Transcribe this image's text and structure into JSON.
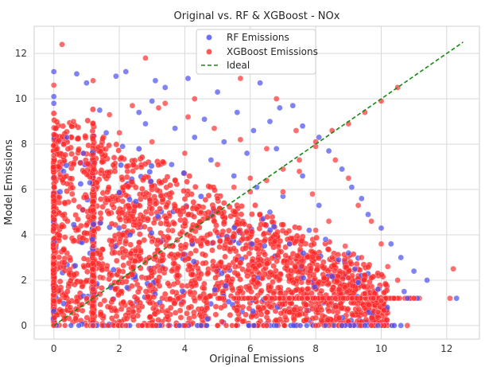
{
  "chart_data": {
    "type": "scatter",
    "title": "Original vs. RF & XGBoost - NOx",
    "xlabel": "Original Emissions",
    "ylabel": "Model Emissions",
    "xlim": [
      -0.6,
      13.0
    ],
    "ylim": [
      -0.6,
      13.2
    ],
    "xticks": [
      0,
      2,
      4,
      6,
      8,
      10,
      12
    ],
    "yticks": [
      0,
      2,
      4,
      6,
      8,
      10,
      12
    ],
    "grid": true,
    "legend_position": "top-center",
    "series": [
      {
        "name": "RF Emissions",
        "color": "#4a4ef0",
        "points": [
          [
            0.0,
            11.2
          ],
          [
            0.0,
            10.1
          ],
          [
            0.0,
            9.8
          ],
          [
            0.7,
            11.1
          ],
          [
            1.0,
            10.7
          ],
          [
            1.9,
            11.0
          ],
          [
            2.2,
            11.2
          ],
          [
            3.1,
            10.8
          ],
          [
            3.4,
            10.5
          ],
          [
            4.1,
            10.9
          ],
          [
            5.0,
            10.3
          ],
          [
            6.3,
            10.7
          ],
          [
            6.9,
            9.6
          ],
          [
            7.3,
            9.7
          ],
          [
            1.4,
            9.5
          ],
          [
            2.6,
            9.4
          ],
          [
            4.6,
            9.1
          ],
          [
            5.6,
            9.4
          ],
          [
            6.1,
            8.6
          ],
          [
            6.6,
            9.0
          ],
          [
            7.6,
            8.8
          ],
          [
            8.1,
            8.3
          ],
          [
            8.4,
            7.7
          ],
          [
            8.8,
            6.9
          ],
          [
            9.1,
            6.1
          ],
          [
            9.4,
            5.6
          ],
          [
            9.6,
            4.9
          ],
          [
            10.0,
            4.3
          ],
          [
            10.3,
            3.6
          ],
          [
            10.6,
            3.0
          ],
          [
            11.0,
            2.4
          ],
          [
            11.4,
            2.0
          ],
          [
            10.7,
            1.5
          ],
          [
            10.8,
            1.2
          ],
          [
            11.1,
            1.2
          ],
          [
            12.3,
            1.2
          ],
          [
            9.9,
            1.6
          ],
          [
            9.3,
            1.9
          ],
          [
            8.7,
            2.9
          ],
          [
            9.0,
            3.2
          ],
          [
            8.1,
            5.3
          ],
          [
            7.6,
            6.6
          ],
          [
            7.8,
            4.2
          ],
          [
            6.8,
            7.8
          ],
          [
            5.9,
            7.6
          ],
          [
            5.2,
            8.1
          ],
          [
            4.3,
            8.3
          ],
          [
            3.7,
            8.7
          ],
          [
            2.8,
            8.9
          ],
          [
            1.6,
            8.5
          ],
          [
            0.4,
            8.3
          ],
          [
            0.9,
            7.6
          ],
          [
            7.2,
            3.6
          ],
          [
            6.6,
            5.0
          ],
          [
            9.5,
            0.0
          ],
          [
            9.9,
            0.0
          ],
          [
            10.4,
            0.0
          ],
          [
            10.6,
            0.0
          ],
          [
            8.8,
            0.0
          ],
          [
            0.3,
            6.8
          ],
          [
            2.1,
            7.9
          ],
          [
            3.0,
            9.9
          ],
          [
            4.8,
            7.3
          ],
          [
            5.5,
            6.6
          ],
          [
            6.2,
            6.1
          ],
          [
            7.0,
            5.7
          ],
          [
            8.3,
            3.8
          ],
          [
            9.2,
            2.5
          ],
          [
            3.6,
            7.1
          ],
          [
            1.1,
            6.3
          ]
        ]
      },
      {
        "name": "XGBoost Emissions",
        "color": "#ff3030",
        "points": [
          [
            0.25,
            12.4
          ],
          [
            2.8,
            11.8
          ],
          [
            5.7,
            10.9
          ],
          [
            4.3,
            10.0
          ],
          [
            3.4,
            9.8
          ],
          [
            1.2,
            10.8
          ],
          [
            0.0,
            10.6
          ],
          [
            6.8,
            10.0
          ],
          [
            7.4,
            8.6
          ],
          [
            8.0,
            7.9
          ],
          [
            8.6,
            7.3
          ],
          [
            9.0,
            6.5
          ],
          [
            9.3,
            5.3
          ],
          [
            9.7,
            4.6
          ],
          [
            10.0,
            3.6
          ],
          [
            10.2,
            2.6
          ],
          [
            10.5,
            2.0
          ],
          [
            10.0,
            1.1
          ],
          [
            10.8,
            0.0
          ],
          [
            12.2,
            2.5
          ],
          [
            12.1,
            1.2
          ],
          [
            11.0,
            1.2
          ],
          [
            9.4,
            3.0
          ],
          [
            8.9,
            3.5
          ],
          [
            8.4,
            4.6
          ],
          [
            7.9,
            5.8
          ],
          [
            7.5,
            6.8
          ],
          [
            6.5,
            7.8
          ],
          [
            5.7,
            8.2
          ],
          [
            4.9,
            8.7
          ],
          [
            4.1,
            9.2
          ],
          [
            3.2,
            9.6
          ],
          [
            2.4,
            9.7
          ],
          [
            1.7,
            9.3
          ],
          [
            0.6,
            9.0
          ],
          [
            0.3,
            8.0
          ],
          [
            2.0,
            8.5
          ],
          [
            3.0,
            8.1
          ],
          [
            4.0,
            7.6
          ],
          [
            5.0,
            7.1
          ],
          [
            6.0,
            6.5
          ],
          [
            7.0,
            5.9
          ],
          [
            8.0,
            4.2
          ],
          [
            8.5,
            3.0
          ],
          [
            9.0,
            2.1
          ],
          [
            9.5,
            1.4
          ],
          [
            9.9,
            0.6
          ],
          [
            0.0,
            0.0
          ],
          [
            0.5,
            0.8
          ],
          [
            1.0,
            1.2
          ],
          [
            1.5,
            2.1
          ],
          [
            2.0,
            2.4
          ],
          [
            2.5,
            3.3
          ],
          [
            3.0,
            3.7
          ],
          [
            3.5,
            4.2
          ],
          [
            4.0,
            4.5
          ],
          [
            4.5,
            5.0
          ],
          [
            5.0,
            5.6
          ],
          [
            5.5,
            6.1
          ],
          [
            6.0,
            5.9
          ],
          [
            6.5,
            6.4
          ],
          [
            7.0,
            6.9
          ],
          [
            7.5,
            7.3
          ],
          [
            8.0,
            8.1
          ],
          [
            8.5,
            8.6
          ],
          [
            9.0,
            8.9
          ],
          [
            9.5,
            9.4
          ],
          [
            10.0,
            9.9
          ],
          [
            10.5,
            10.5
          ],
          [
            1.2,
            0.0
          ],
          [
            2.2,
            0.0
          ],
          [
            3.5,
            0.0
          ],
          [
            5.0,
            0.0
          ],
          [
            6.5,
            0.0
          ],
          [
            8.0,
            0.0
          ],
          [
            0.0,
            5.0
          ],
          [
            0.0,
            3.0
          ],
          [
            0.0,
            7.5
          ],
          [
            1.2,
            6.0
          ],
          [
            1.2,
            3.5
          ],
          [
            3.8,
            1.2
          ],
          [
            5.5,
            1.2
          ],
          [
            7.2,
            1.2
          ],
          [
            8.6,
            1.2
          ]
        ]
      }
    ],
    "lines": [
      {
        "name": "Ideal",
        "color": "#138a13",
        "style": "dashed",
        "x": [
          0,
          12.5
        ],
        "y": [
          0,
          12.5
        ]
      }
    ]
  }
}
